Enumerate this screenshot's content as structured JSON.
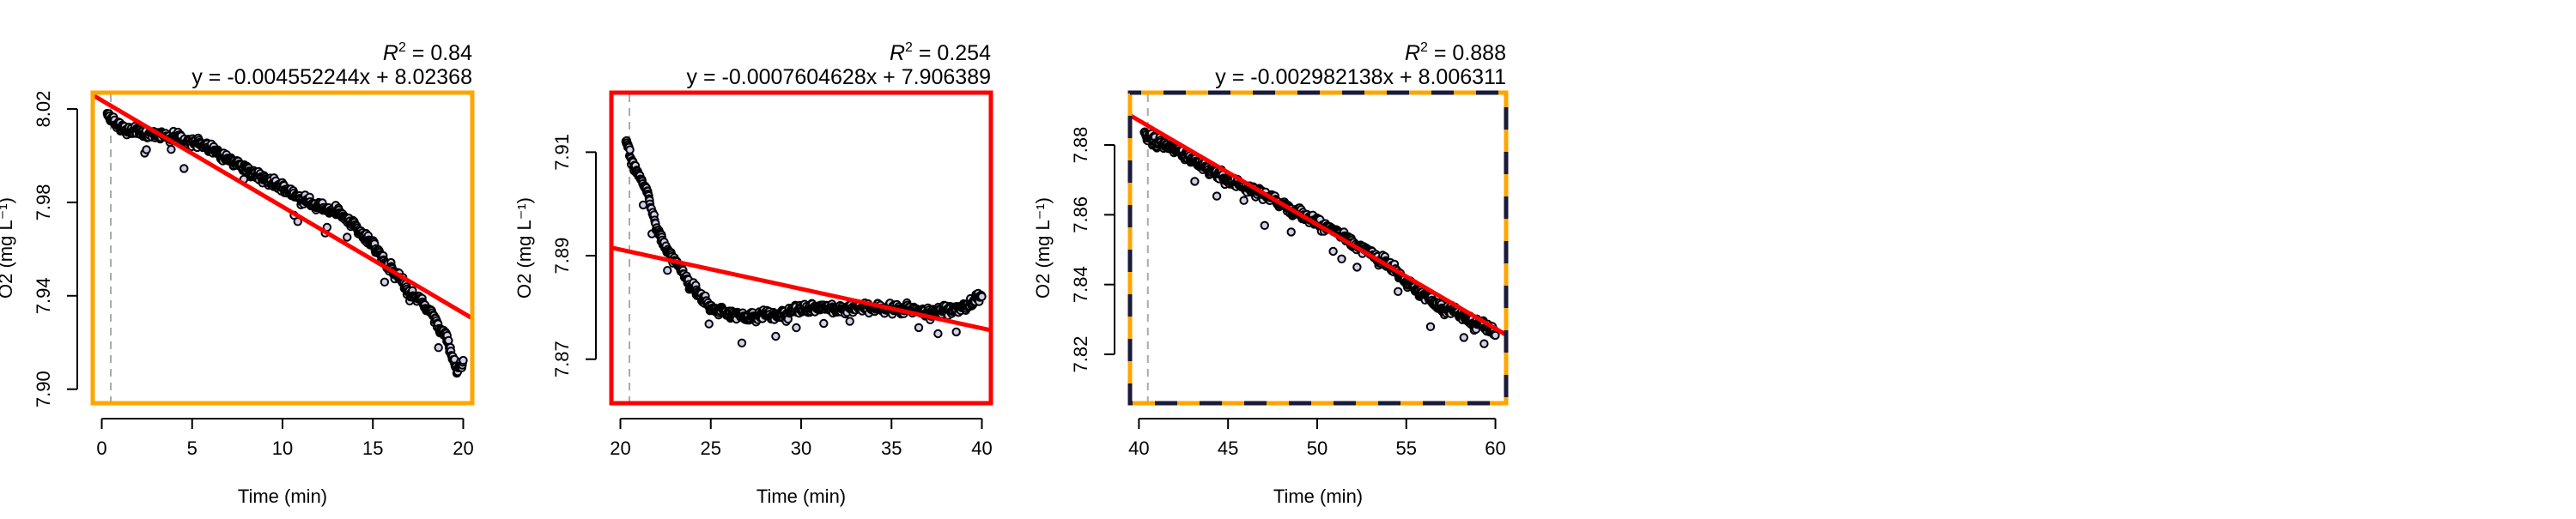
{
  "chart_data": [
    {
      "type": "scatter",
      "r2_value": "0.84",
      "equation": "y = -0.004552244x + 8.02368",
      "xlabel": "Time (min)",
      "ylabel": "O2 (mg L⁻¹)",
      "xlim": [
        -0.5,
        20.5
      ],
      "ylim": [
        7.894,
        8.027
      ],
      "xticks": [
        0,
        5,
        10,
        15,
        20
      ],
      "yticks": [
        7.9,
        7.94,
        7.98,
        8.02
      ],
      "ytick_labels": [
        "7.90",
        "7.94",
        "7.98",
        "8.02"
      ],
      "border_color": "#ffa500",
      "border_style": "solid",
      "start_marker_x": 0.5,
      "fit": {
        "slope": -0.004552244,
        "intercept": 8.02368,
        "color": "#ff0000"
      },
      "trend_points": [
        [
          0.3,
          8.017
        ],
        [
          1,
          8.012
        ],
        [
          2,
          8.01
        ],
        [
          3,
          8.009
        ],
        [
          4,
          8.008
        ],
        [
          5,
          8.006
        ],
        [
          6,
          8.003
        ],
        [
          7,
          7.998
        ],
        [
          8,
          7.994
        ],
        [
          9,
          7.99
        ],
        [
          10,
          7.986
        ],
        [
          11,
          7.982
        ],
        [
          12,
          7.978
        ],
        [
          13,
          7.976
        ],
        [
          14,
          7.97
        ],
        [
          15,
          7.962
        ],
        [
          16,
          7.952
        ],
        [
          17,
          7.942
        ],
        [
          18,
          7.935
        ],
        [
          19,
          7.924
        ],
        [
          19.7,
          7.908
        ],
        [
          20,
          7.912
        ]
      ]
    },
    {
      "type": "scatter",
      "r2_value": "0.254",
      "equation": "y = -0.0007604628x + 7.906389",
      "xlabel": "Time (min)",
      "ylabel": "O2 (mg L⁻¹)",
      "xlim": [
        19.5,
        40.5
      ],
      "ylim": [
        7.8615,
        7.9215
      ],
      "xticks": [
        20,
        25,
        30,
        35,
        40
      ],
      "yticks": [
        7.87,
        7.89,
        7.91
      ],
      "ytick_labels": [
        "7.87",
        "7.89",
        "7.91"
      ],
      "border_color": "#ff0000",
      "border_style": "solid",
      "start_marker_x": 20.5,
      "fit": {
        "slope": -0.0007604628,
        "intercept": 7.906389,
        "color": "#ff0000"
      },
      "trend_points": [
        [
          20.3,
          7.912
        ],
        [
          20.8,
          7.907
        ],
        [
          21.5,
          7.902
        ],
        [
          22,
          7.895
        ],
        [
          23,
          7.889
        ],
        [
          24,
          7.884
        ],
        [
          25,
          7.88
        ],
        [
          27,
          7.878
        ],
        [
          29,
          7.879
        ],
        [
          31,
          7.88
        ],
        [
          33,
          7.88
        ],
        [
          35,
          7.88
        ],
        [
          37,
          7.879
        ],
        [
          39,
          7.88
        ],
        [
          40,
          7.882
        ]
      ]
    },
    {
      "type": "scatter",
      "r2_value": "0.888",
      "equation": "y = -0.002982138x + 8.006311",
      "xlabel": "Time (min)",
      "ylabel": "O2 (mg L⁻¹)",
      "xlim": [
        39.5,
        60.6
      ],
      "ylim": [
        7.806,
        7.895
      ],
      "xticks": [
        40,
        45,
        50,
        55,
        60
      ],
      "yticks": [
        7.82,
        7.84,
        7.86,
        7.88
      ],
      "ytick_labels": [
        "7.82",
        "7.84",
        "7.86",
        "7.88"
      ],
      "border_color": "#ffa500",
      "border_style": "dashed",
      "start_marker_x": 40.5,
      "fit": {
        "slope": -0.002982138,
        "intercept": 8.006311,
        "color": "#ff0000"
      },
      "trend_points": [
        [
          40.3,
          7.884
        ],
        [
          41,
          7.881
        ],
        [
          42,
          7.879
        ],
        [
          43,
          7.876
        ],
        [
          44,
          7.873
        ],
        [
          45,
          7.87
        ],
        [
          46,
          7.868
        ],
        [
          47,
          7.866
        ],
        [
          48,
          7.863
        ],
        [
          49,
          7.861
        ],
        [
          50,
          7.858
        ],
        [
          51,
          7.855
        ],
        [
          52,
          7.852
        ],
        [
          53,
          7.849
        ],
        [
          54,
          7.846
        ],
        [
          55,
          7.841
        ],
        [
          56,
          7.837
        ],
        [
          57,
          7.833
        ],
        [
          58,
          7.832
        ],
        [
          59,
          7.829
        ],
        [
          60,
          7.826
        ]
      ]
    }
  ]
}
